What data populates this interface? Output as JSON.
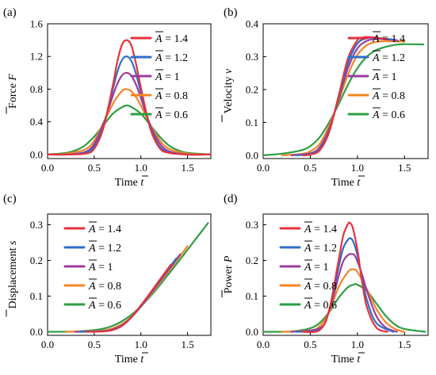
{
  "colors": {
    "s1.4": "#e8313b",
    "s1.2": "#2f6ec8",
    "s1": "#9b3ba0",
    "s0.8": "#f58524",
    "s0.6": "#2e9e45"
  },
  "legend_value_labels": [
    "= 1.4",
    "= 1.2",
    "= 1",
    "= 0.8",
    "= 0.6"
  ],
  "chart_data": [
    {
      "panel_label": "(a)",
      "type": "line",
      "xlabel": "Time t",
      "ylabel": "Force F",
      "xlim": [
        0.0,
        1.75
      ],
      "ylim": [
        -0.05,
        1.6
      ],
      "xticks": [
        "0.0",
        "0.5",
        "1.0",
        "1.5"
      ],
      "yticks": [
        "0.0",
        "0.4",
        "0.8",
        "1.2",
        "1.6"
      ],
      "legend_position": "top-right",
      "series": [
        {
          "name": "A = 1.4",
          "x": [
            0.0,
            0.2,
            0.4,
            0.5,
            0.6,
            0.7,
            0.75,
            0.8,
            0.85,
            0.9,
            0.95,
            1.0,
            1.1,
            1.2,
            1.3,
            1.5,
            1.75
          ],
          "y": [
            0.0,
            0.0,
            0.01,
            0.07,
            0.33,
            0.85,
            1.15,
            1.35,
            1.4,
            1.33,
            1.1,
            0.82,
            0.32,
            0.08,
            0.02,
            0.0,
            0.0
          ]
        },
        {
          "name": "A = 1.2",
          "x": [
            0.0,
            0.2,
            0.4,
            0.5,
            0.6,
            0.7,
            0.75,
            0.8,
            0.85,
            0.9,
            0.95,
            1.0,
            1.1,
            1.2,
            1.3,
            1.5,
            1.75
          ],
          "y": [
            0.0,
            0.0,
            0.02,
            0.1,
            0.35,
            0.8,
            1.02,
            1.16,
            1.2,
            1.14,
            0.98,
            0.76,
            0.34,
            0.1,
            0.03,
            0.0,
            0.0
          ]
        },
        {
          "name": "A = 1",
          "x": [
            0.0,
            0.2,
            0.4,
            0.5,
            0.6,
            0.7,
            0.75,
            0.8,
            0.85,
            0.9,
            0.95,
            1.0,
            1.1,
            1.2,
            1.3,
            1.5,
            1.75
          ],
          "y": [
            0.0,
            0.0,
            0.03,
            0.13,
            0.38,
            0.72,
            0.87,
            0.97,
            1.0,
            0.96,
            0.85,
            0.69,
            0.36,
            0.14,
            0.04,
            0.0,
            0.0
          ]
        },
        {
          "name": "A = 0.8",
          "x": [
            0.0,
            0.2,
            0.4,
            0.5,
            0.6,
            0.7,
            0.75,
            0.8,
            0.85,
            0.9,
            0.95,
            1.0,
            1.1,
            1.2,
            1.3,
            1.5,
            1.75
          ],
          "y": [
            0.0,
            0.01,
            0.06,
            0.17,
            0.39,
            0.62,
            0.71,
            0.78,
            0.8,
            0.77,
            0.7,
            0.6,
            0.37,
            0.18,
            0.07,
            0.01,
            0.0
          ]
        },
        {
          "name": "A = 0.6",
          "x": [
            0.0,
            0.2,
            0.3,
            0.4,
            0.5,
            0.6,
            0.7,
            0.8,
            0.85,
            0.9,
            1.0,
            1.1,
            1.2,
            1.3,
            1.4,
            1.5,
            1.75
          ],
          "y": [
            0.0,
            0.02,
            0.05,
            0.11,
            0.22,
            0.36,
            0.5,
            0.58,
            0.6,
            0.58,
            0.5,
            0.36,
            0.22,
            0.11,
            0.05,
            0.02,
            0.0
          ]
        }
      ]
    },
    {
      "panel_label": "(b)",
      "type": "line",
      "xlabel": "Time t",
      "ylabel": "Velocity v",
      "xlim": [
        0.0,
        1.75
      ],
      "ylim": [
        -0.01,
        0.4
      ],
      "xticks": [
        "0.0",
        "0.5",
        "1.0",
        "1.5"
      ],
      "yticks": [
        "0.0",
        "0.1",
        "0.2",
        "0.3",
        "0.4"
      ],
      "legend_position": "top-right",
      "series": [
        {
          "name": "A = 1.4",
          "x": [
            0.42,
            0.5,
            0.6,
            0.7,
            0.8,
            0.9,
            1.0,
            1.05,
            1.1,
            1.2,
            1.32
          ],
          "y": [
            0.0,
            0.002,
            0.015,
            0.07,
            0.18,
            0.295,
            0.35,
            0.358,
            0.36,
            0.358,
            0.353
          ]
        },
        {
          "name": "A = 1.2",
          "x": [
            0.35,
            0.5,
            0.6,
            0.7,
            0.8,
            0.9,
            1.0,
            1.1,
            1.2,
            1.38
          ],
          "y": [
            0.0,
            0.004,
            0.02,
            0.075,
            0.175,
            0.28,
            0.34,
            0.356,
            0.357,
            0.352
          ]
        },
        {
          "name": "A = 1",
          "x": [
            0.3,
            0.5,
            0.6,
            0.7,
            0.8,
            0.9,
            1.0,
            1.1,
            1.2,
            1.3,
            1.42
          ],
          "y": [
            0.0,
            0.006,
            0.025,
            0.08,
            0.17,
            0.265,
            0.325,
            0.348,
            0.354,
            0.353,
            0.35
          ]
        },
        {
          "name": "A = 0.8",
          "x": [
            0.2,
            0.4,
            0.5,
            0.6,
            0.7,
            0.8,
            0.9,
            1.0,
            1.1,
            1.2,
            1.3,
            1.5
          ],
          "y": [
            0.0,
            0.004,
            0.012,
            0.035,
            0.09,
            0.165,
            0.245,
            0.305,
            0.335,
            0.345,
            0.347,
            0.346
          ]
        },
        {
          "name": "A = 0.6",
          "x": [
            0.0,
            0.2,
            0.4,
            0.5,
            0.6,
            0.7,
            0.8,
            0.9,
            1.0,
            1.1,
            1.2,
            1.3,
            1.4,
            1.5,
            1.7
          ],
          "y": [
            0.0,
            0.005,
            0.015,
            0.028,
            0.055,
            0.1,
            0.155,
            0.215,
            0.265,
            0.3,
            0.32,
            0.33,
            0.336,
            0.338,
            0.337
          ]
        }
      ]
    },
    {
      "panel_label": "(c)",
      "type": "line",
      "xlabel": "Time t",
      "ylabel": "Displacement s",
      "xlim": [
        0.0,
        1.75
      ],
      "ylim": [
        -0.01,
        0.33
      ],
      "xticks": [
        "0.0",
        "0.5",
        "1.0",
        "1.5"
      ],
      "yticks": [
        "0.0",
        "0.1",
        "0.2",
        "0.3"
      ],
      "legend_position": "top-left",
      "series": [
        {
          "name": "A = 1.4",
          "x": [
            0.42,
            0.6,
            0.7,
            0.8,
            0.9,
            1.0,
            1.1,
            1.2,
            1.32
          ],
          "y": [
            0.0,
            0.001,
            0.005,
            0.017,
            0.041,
            0.074,
            0.109,
            0.145,
            0.188
          ]
        },
        {
          "name": "A = 1.2",
          "x": [
            0.35,
            0.6,
            0.7,
            0.8,
            0.9,
            1.0,
            1.1,
            1.2,
            1.3,
            1.38
          ],
          "y": [
            0.0,
            0.002,
            0.006,
            0.018,
            0.041,
            0.072,
            0.107,
            0.143,
            0.178,
            0.206
          ]
        },
        {
          "name": "A = 1",
          "x": [
            0.3,
            0.6,
            0.7,
            0.8,
            0.9,
            1.0,
            1.1,
            1.2,
            1.3,
            1.42
          ],
          "y": [
            0.0,
            0.002,
            0.007,
            0.019,
            0.041,
            0.071,
            0.105,
            0.14,
            0.175,
            0.217
          ]
        },
        {
          "name": "A = 0.8",
          "x": [
            0.2,
            0.5,
            0.6,
            0.7,
            0.8,
            0.9,
            1.0,
            1.1,
            1.2,
            1.3,
            1.4,
            1.5
          ],
          "y": [
            0.0,
            0.002,
            0.004,
            0.01,
            0.022,
            0.042,
            0.07,
            0.102,
            0.136,
            0.17,
            0.205,
            0.24
          ]
        },
        {
          "name": "A = 0.6",
          "x": [
            0.0,
            0.3,
            0.5,
            0.6,
            0.7,
            0.8,
            0.9,
            1.0,
            1.1,
            1.2,
            1.3,
            1.4,
            1.5,
            1.6,
            1.72
          ],
          "y": [
            0.0,
            0.001,
            0.005,
            0.009,
            0.017,
            0.03,
            0.048,
            0.071,
            0.099,
            0.13,
            0.163,
            0.196,
            0.23,
            0.264,
            0.305
          ]
        }
      ]
    },
    {
      "panel_label": "(d)",
      "type": "line",
      "xlabel": "Time t",
      "ylabel": "Power P",
      "xlim": [
        0.0,
        1.75
      ],
      "ylim": [
        -0.01,
        0.33
      ],
      "xticks": [
        "0.0",
        "0.5",
        "1.0",
        "1.5"
      ],
      "yticks": [
        "0.0",
        "0.1",
        "0.2",
        "0.3"
      ],
      "legend_position": "top-left",
      "series": [
        {
          "name": "A = 1.4",
          "x": [
            0.42,
            0.6,
            0.7,
            0.8,
            0.85,
            0.9,
            0.92,
            0.95,
            1.0,
            1.05,
            1.1,
            1.2,
            1.32
          ],
          "y": [
            0.0,
            0.005,
            0.06,
            0.2,
            0.27,
            0.302,
            0.305,
            0.292,
            0.23,
            0.14,
            0.07,
            0.012,
            0.0
          ]
        },
        {
          "name": "A = 1.2",
          "x": [
            0.35,
            0.6,
            0.7,
            0.8,
            0.85,
            0.9,
            0.93,
            0.96,
            1.0,
            1.05,
            1.1,
            1.2,
            1.38
          ],
          "y": [
            0.0,
            0.007,
            0.06,
            0.18,
            0.235,
            0.258,
            0.262,
            0.25,
            0.215,
            0.15,
            0.09,
            0.025,
            0.0
          ]
        },
        {
          "name": "A = 1",
          "x": [
            0.3,
            0.6,
            0.7,
            0.8,
            0.85,
            0.9,
            0.94,
            0.98,
            1.05,
            1.1,
            1.2,
            1.3,
            1.42
          ],
          "y": [
            0.0,
            0.01,
            0.058,
            0.155,
            0.198,
            0.215,
            0.218,
            0.21,
            0.16,
            0.115,
            0.045,
            0.012,
            0.0
          ]
        },
        {
          "name": "A = 0.8",
          "x": [
            0.2,
            0.5,
            0.6,
            0.7,
            0.8,
            0.9,
            0.95,
            1.0,
            1.1,
            1.2,
            1.3,
            1.4,
            1.5
          ],
          "y": [
            0.0,
            0.004,
            0.016,
            0.055,
            0.125,
            0.168,
            0.175,
            0.168,
            0.12,
            0.065,
            0.027,
            0.008,
            0.0
          ]
        },
        {
          "name": "A = 0.6",
          "x": [
            0.0,
            0.3,
            0.5,
            0.6,
            0.7,
            0.8,
            0.9,
            0.97,
            1.0,
            1.1,
            1.2,
            1.3,
            1.4,
            1.5,
            1.72
          ],
          "y": [
            0.0,
            0.001,
            0.01,
            0.025,
            0.055,
            0.095,
            0.125,
            0.133,
            0.132,
            0.115,
            0.08,
            0.045,
            0.02,
            0.008,
            0.0
          ]
        }
      ]
    }
  ]
}
